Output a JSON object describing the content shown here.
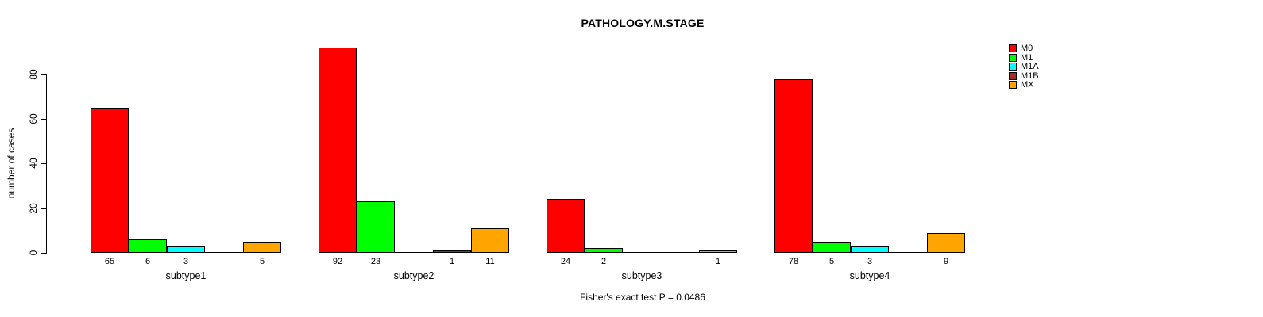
{
  "chart_data": {
    "type": "bar",
    "title": "PATHOLOGY.M.STAGE",
    "ylabel": "number of cases",
    "xlabel": "",
    "ylim": [
      0,
      80
    ],
    "yticks": [
      0,
      20,
      40,
      60,
      80
    ],
    "grid": false,
    "legend_position": "top-right",
    "categories": [
      "subtype1",
      "subtype2",
      "subtype3",
      "subtype4"
    ],
    "series": [
      {
        "name": "M0",
        "color": "#FF0000",
        "values": [
          65,
          92,
          24,
          78
        ]
      },
      {
        "name": "M1",
        "color": "#00FF00",
        "values": [
          6,
          23,
          2,
          5
        ]
      },
      {
        "name": "M1A",
        "color": "#00FFFF",
        "values": [
          3,
          0,
          0,
          3
        ]
      },
      {
        "name": "M1B",
        "color": "#A52A2A",
        "values": [
          0,
          1,
          0,
          0
        ]
      },
      {
        "name": "MX",
        "color": "#FFA500",
        "values": [
          5,
          11,
          1,
          9
        ]
      }
    ],
    "bar_labels_shown_for_zero": false,
    "annotation": "Fisher's exact test P = 0.0486"
  }
}
